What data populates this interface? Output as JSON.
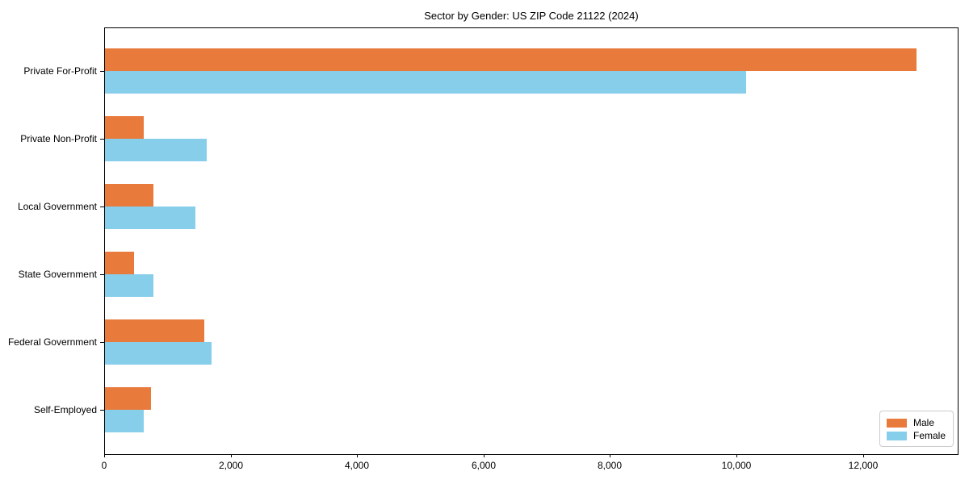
{
  "chart_data": {
    "type": "bar",
    "orientation": "horizontal",
    "title": "Sector by Gender: US ZIP Code 21122 (2024)",
    "categories": [
      "Private For-Profit",
      "Private Non-Profit",
      "Local Government",
      "State Government",
      "Federal Government",
      "Self-Employed"
    ],
    "series": [
      {
        "name": "Male",
        "color": "#E87A3C",
        "values": [
          12840,
          610,
          770,
          460,
          1570,
          730
        ]
      },
      {
        "name": "Female",
        "color": "#87CEEB",
        "values": [
          10140,
          1610,
          1430,
          770,
          1690,
          610
        ]
      }
    ],
    "xlabel": "",
    "ylabel": "",
    "xlim": [
      0,
      13500
    ],
    "x_ticks": [
      0,
      2000,
      4000,
      6000,
      8000,
      10000,
      12000
    ],
    "x_tick_labels": [
      "0",
      "2,000",
      "4,000",
      "6,000",
      "8,000",
      "10,000",
      "12,000"
    ],
    "grid": false,
    "legend": {
      "position": "lower right",
      "entries": [
        "Male",
        "Female"
      ]
    }
  },
  "colors": {
    "background": "#ffffff",
    "spine": "#000000",
    "text": "#000000",
    "legend_border": "#cccccc"
  }
}
